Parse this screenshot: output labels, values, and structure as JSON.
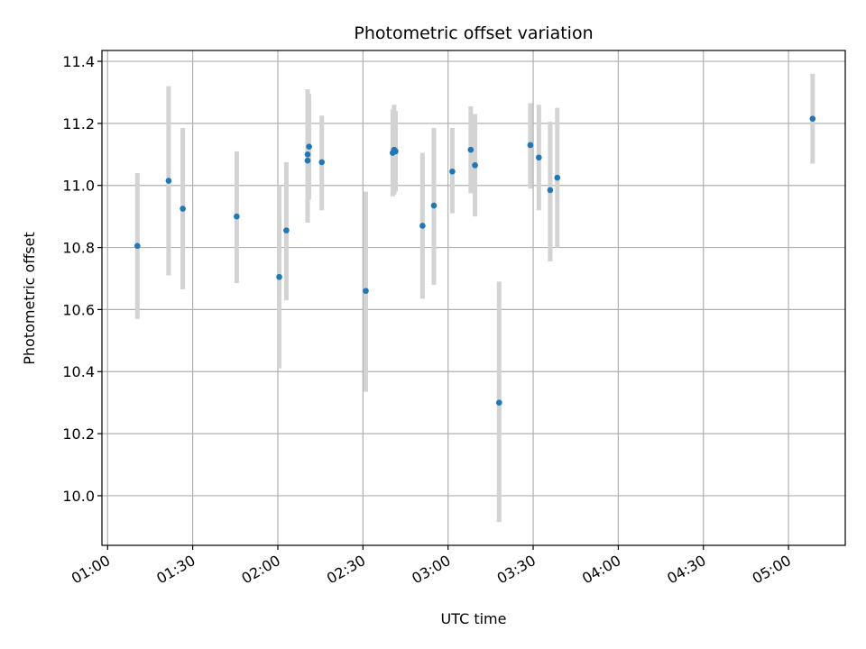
{
  "chart_data": {
    "type": "scatter",
    "title": "Photometric offset variation",
    "xlabel": "UTC time",
    "ylabel": "Photometric offset",
    "x_unit": "UTC HH:MM",
    "xlim": [
      "00:58",
      "05:20"
    ],
    "ylim": [
      9.84,
      11.435
    ],
    "x_ticks": [
      "01:00",
      "01:30",
      "02:00",
      "02:30",
      "03:00",
      "03:30",
      "04:00",
      "04:30",
      "05:00"
    ],
    "y_ticks": [
      10.0,
      10.2,
      10.4,
      10.6,
      10.8,
      11.0,
      11.2,
      11.4
    ],
    "y_tick_labels": [
      "10.0",
      "10.2",
      "10.4",
      "10.6",
      "10.8",
      "11.0",
      "11.2",
      "11.4"
    ],
    "grid": true,
    "colors": {
      "point": "#1f77b4",
      "errorbar": "#d3d3d3",
      "grid": "#b0b0b0"
    },
    "points": [
      {
        "x": "01:10:30",
        "y": 10.805,
        "lo": 10.57,
        "hi": 11.04
      },
      {
        "x": "01:21:30",
        "y": 11.015,
        "lo": 10.71,
        "hi": 11.32
      },
      {
        "x": "01:26:30",
        "y": 10.925,
        "lo": 10.665,
        "hi": 11.185
      },
      {
        "x": "01:45:30",
        "y": 10.9,
        "lo": 10.685,
        "hi": 11.11
      },
      {
        "x": "02:00:30",
        "y": 10.705,
        "lo": 10.41,
        "hi": 11.0
      },
      {
        "x": "02:03:00",
        "y": 10.855,
        "lo": 10.63,
        "hi": 11.075
      },
      {
        "x": "02:10:30",
        "y": 11.1,
        "lo": 10.89,
        "hi": 11.31
      },
      {
        "x": "02:10:30",
        "y": 11.08,
        "lo": 10.88,
        "hi": 11.28
      },
      {
        "x": "02:11:00",
        "y": 11.125,
        "lo": 10.955,
        "hi": 11.295
      },
      {
        "x": "02:15:30",
        "y": 11.075,
        "lo": 10.92,
        "hi": 11.225
      },
      {
        "x": "02:31:00",
        "y": 10.66,
        "lo": 10.335,
        "hi": 10.98
      },
      {
        "x": "02:40:30",
        "y": 11.105,
        "lo": 10.965,
        "hi": 11.245
      },
      {
        "x": "02:41:00",
        "y": 11.115,
        "lo": 10.97,
        "hi": 11.26
      },
      {
        "x": "02:41:30",
        "y": 11.11,
        "lo": 10.98,
        "hi": 11.24
      },
      {
        "x": "02:51:00",
        "y": 10.87,
        "lo": 10.635,
        "hi": 11.105
      },
      {
        "x": "02:55:00",
        "y": 10.935,
        "lo": 10.68,
        "hi": 11.185
      },
      {
        "x": "03:01:30",
        "y": 11.045,
        "lo": 10.91,
        "hi": 11.185
      },
      {
        "x": "03:08:00",
        "y": 11.115,
        "lo": 10.975,
        "hi": 11.255
      },
      {
        "x": "03:09:30",
        "y": 11.065,
        "lo": 10.9,
        "hi": 11.23
      },
      {
        "x": "03:18:00",
        "y": 10.3,
        "lo": 9.915,
        "hi": 10.69
      },
      {
        "x": "03:29:00",
        "y": 11.13,
        "lo": 10.99,
        "hi": 11.265
      },
      {
        "x": "03:32:00",
        "y": 11.09,
        "lo": 10.92,
        "hi": 11.26
      },
      {
        "x": "03:36:00",
        "y": 10.985,
        "lo": 10.755,
        "hi": 11.205
      },
      {
        "x": "03:38:30",
        "y": 11.025,
        "lo": 10.8,
        "hi": 11.25
      },
      {
        "x": "05:08:30",
        "y": 11.215,
        "lo": 11.07,
        "hi": 11.36
      }
    ]
  }
}
